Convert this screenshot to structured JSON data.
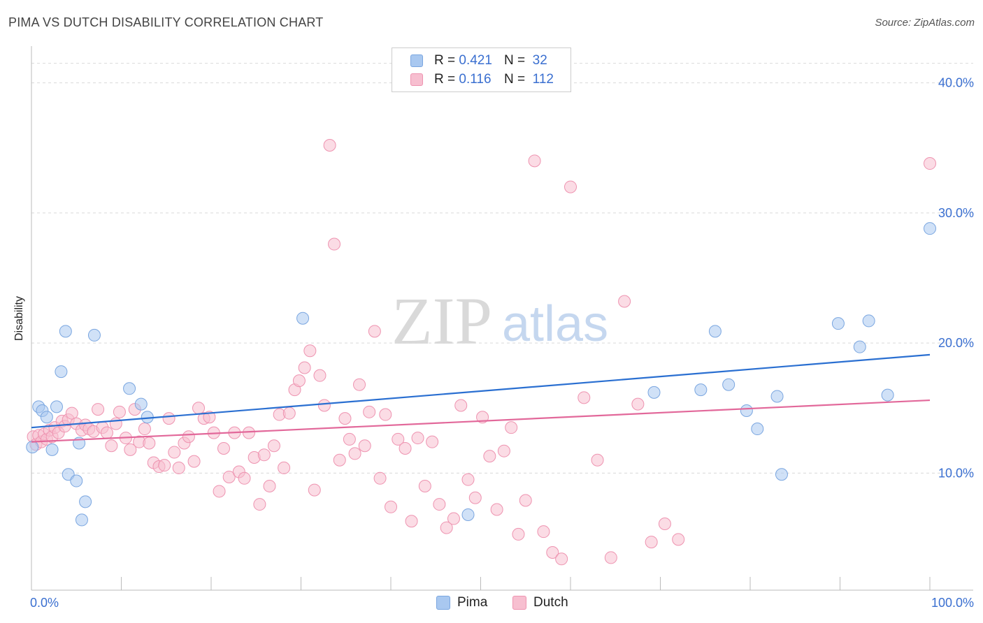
{
  "title": "PIMA VS DUTCH DISABILITY CORRELATION CHART",
  "source": "Source: ZipAtlas.com",
  "watermark": {
    "zip": "ZIP",
    "atlas": "atlas"
  },
  "legend": {
    "rows": [
      {
        "r_label": "R =",
        "r_value": "0.421",
        "n_label": "N =",
        "n_value": "32",
        "color": "#a9c8f0",
        "border": "#7aa6e0"
      },
      {
        "r_label": "R =",
        "r_value": "0.116",
        "n_label": "N =",
        "n_value": "112",
        "color": "#f7bfd0",
        "border": "#ee93b0"
      }
    ]
  },
  "bottom_legend": [
    {
      "label": "Pima",
      "color": "#a9c8f0",
      "border": "#7aa6e0"
    },
    {
      "label": "Dutch",
      "color": "#f7bfd0",
      "border": "#ee93b0"
    }
  ],
  "chart_data": {
    "type": "scatter",
    "title": "PIMA VS DUTCH DISABILITY CORRELATION CHART",
    "xlabel": "",
    "ylabel": "Disability",
    "xlim": [
      0,
      100
    ],
    "ylim": [
      1,
      42.5
    ],
    "x_tick_labels": [
      "0.0%",
      "100.0%"
    ],
    "y_ticks": [
      10,
      20,
      30,
      40
    ],
    "y_tick_labels": [
      "10.0%",
      "20.0%",
      "30.0%",
      "40.0%"
    ],
    "grid": "horizontal dashed",
    "legend_position": "top-center",
    "series": [
      {
        "name": "Pima",
        "color": "#a9c8f0",
        "stroke": "#7aa6e0",
        "line_color": "#2a6fd1",
        "trend": {
          "x": [
            0,
            100
          ],
          "y": [
            13.5,
            19.1
          ]
        },
        "x": [
          0.1,
          0.8,
          1.2,
          1.7,
          2.3,
          2.8,
          3.3,
          3.8,
          4.1,
          5.0,
          5.3,
          5.6,
          6.0,
          7.0,
          10.9,
          12.2,
          12.9,
          30.2,
          48.6,
          69.3,
          74.5,
          76.1,
          77.6,
          79.6,
          80.8,
          83.0,
          83.5,
          89.8,
          92.2,
          93.2,
          95.3,
          100.0
        ],
        "y": [
          12.0,
          15.1,
          14.8,
          14.3,
          11.8,
          15.1,
          17.8,
          20.9,
          9.9,
          9.4,
          12.3,
          6.4,
          7.8,
          20.6,
          16.5,
          15.3,
          14.3,
          21.9,
          6.8,
          16.2,
          16.4,
          20.9,
          16.8,
          14.8,
          13.4,
          15.9,
          9.9,
          21.5,
          19.7,
          21.7,
          16.0,
          28.8
        ]
      },
      {
        "name": "Dutch",
        "color": "#f7bfd0",
        "stroke": "#ee93b0",
        "line_color": "#e2689a",
        "trend": {
          "x": [
            0,
            100
          ],
          "y": [
            12.4,
            15.6
          ]
        },
        "x": [
          0.2,
          0.5,
          0.8,
          1.1,
          1.4,
          1.7,
          2.0,
          2.3,
          2.6,
          3.0,
          3.4,
          3.7,
          4.1,
          4.5,
          5.0,
          5.6,
          6.0,
          6.4,
          6.9,
          7.4,
          7.9,
          8.4,
          8.9,
          9.4,
          9.8,
          10.5,
          11.0,
          11.5,
          12.0,
          12.6,
          13.1,
          13.6,
          14.2,
          14.8,
          15.3,
          15.9,
          16.4,
          17.0,
          17.5,
          18.1,
          18.6,
          19.2,
          19.8,
          20.3,
          20.9,
          21.4,
          22.0,
          22.6,
          23.1,
          23.7,
          24.2,
          24.8,
          25.4,
          25.9,
          26.5,
          27.0,
          27.6,
          28.1,
          28.7,
          29.3,
          29.8,
          30.4,
          31.0,
          31.5,
          32.1,
          32.6,
          33.2,
          33.7,
          34.3,
          34.9,
          35.4,
          36.0,
          36.5,
          37.1,
          37.6,
          38.2,
          38.8,
          39.4,
          40.0,
          40.8,
          41.6,
          42.3,
          43.0,
          43.8,
          44.6,
          45.4,
          46.2,
          47.0,
          47.8,
          48.6,
          49.4,
          50.2,
          51.0,
          51.8,
          52.6,
          53.4,
          54.2,
          55.0,
          56.0,
          57.0,
          58.0,
          59.0,
          60.0,
          61.5,
          63.0,
          64.5,
          66.0,
          67.5,
          69.0,
          70.5,
          72.0,
          100.0
        ],
        "y": [
          12.8,
          12.2,
          12.9,
          12.4,
          13.0,
          12.6,
          13.3,
          12.8,
          13.5,
          13.1,
          14.0,
          13.6,
          14.1,
          14.6,
          13.8,
          13.3,
          13.7,
          13.4,
          13.2,
          14.9,
          13.5,
          13.1,
          12.1,
          13.8,
          14.7,
          12.7,
          11.8,
          14.9,
          12.4,
          13.4,
          12.3,
          10.8,
          10.5,
          10.6,
          14.2,
          11.6,
          10.4,
          12.3,
          12.8,
          10.9,
          15.0,
          14.2,
          14.3,
          13.1,
          8.6,
          11.9,
          9.7,
          13.1,
          10.1,
          9.6,
          13.1,
          11.2,
          7.6,
          11.4,
          9.0,
          12.1,
          14.5,
          10.4,
          14.6,
          16.4,
          17.1,
          18.1,
          19.4,
          8.7,
          17.5,
          15.2,
          35.2,
          27.6,
          11.0,
          14.2,
          12.6,
          11.5,
          16.8,
          12.1,
          14.7,
          20.9,
          9.6,
          14.5,
          7.4,
          12.6,
          11.9,
          6.3,
          12.7,
          9.0,
          12.4,
          7.6,
          5.8,
          6.5,
          15.2,
          9.5,
          8.1,
          14.3,
          11.3,
          7.2,
          11.7,
          13.5,
          5.3,
          7.9,
          34.0,
          5.5,
          3.9,
          3.4,
          32.0,
          15.8,
          11.0,
          3.5,
          23.2,
          15.3,
          4.7,
          6.1,
          4.9,
          33.8
        ]
      }
    ]
  }
}
